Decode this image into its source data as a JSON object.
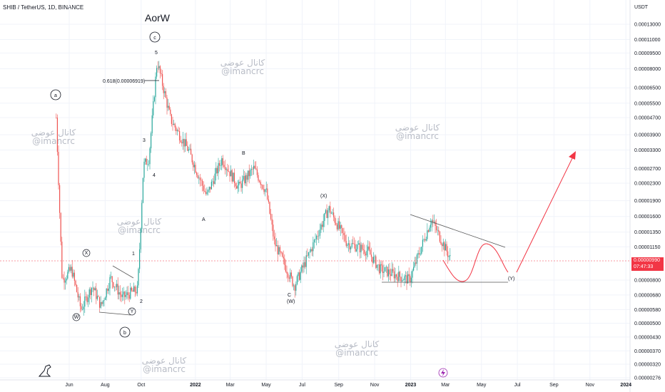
{
  "header": {
    "symbol_line": "SHIB / TetherUS, 1D, BINANCE"
  },
  "price_axis": {
    "currency": "USDT"
  },
  "current_price": {
    "value": "0.00000990",
    "countdown": "07:47:33",
    "color": "#f23645"
  },
  "colors": {
    "up": "#26a69a",
    "down": "#ef5350",
    "target_arrow": "#f23645",
    "projection_curve": "#f23645",
    "trendline": "#555555",
    "watermark": "#b8bcc6"
  },
  "chart_data": {
    "type": "candlestick",
    "y_scale": "log",
    "y_ticks": [
      "0.00013000",
      "0.00011000",
      "0.00009500",
      "0.00008000",
      "0.00006500",
      "0.00005500",
      "0.00004700",
      "0.00003900",
      "0.00003300",
      "0.00002700",
      "0.00002300",
      "0.00001900",
      "0.00001600",
      "0.00001350",
      "0.00001150",
      "0.00000800",
      "0.00000680",
      "0.00000580",
      "0.00000500",
      "0.00000430",
      "0.00000370",
      "0.00000320",
      "0.00000276"
    ],
    "x_ticks": [
      "Jun",
      "Aug",
      "Oct",
      "2022",
      "Mar",
      "May",
      "Jul",
      "Sep",
      "Nov",
      "2023",
      "Mar",
      "May",
      "Jul",
      "Sep",
      "Nov",
      "2024"
    ],
    "series_path": [
      [
        "2021-05-10",
        4.7e-05
      ],
      [
        "2021-05-20",
        8e-06
      ],
      [
        "2021-06-05",
        9e-06
      ],
      [
        "2021-06-21",
        5.8e-06
      ],
      [
        "2021-07-10",
        7.5e-06
      ],
      [
        "2021-07-25",
        6e-06
      ],
      [
        "2021-08-10",
        8.2e-06
      ],
      [
        "2021-08-30",
        6.6e-06
      ],
      [
        "2021-09-15",
        7e-06
      ],
      [
        "2021-09-25",
        7.2e-06
      ],
      [
        "2021-10-05",
        2.8e-05
      ],
      [
        "2021-10-14",
        3e-05
      ],
      [
        "2021-10-28",
        8.7e-05
      ],
      [
        "2021-11-20",
        4.6e-05
      ],
      [
        "2021-12-20",
        3.3e-05
      ],
      [
        "2022-01-20",
        2e-05
      ],
      [
        "2022-02-15",
        3e-05
      ],
      [
        "2022-03-15",
        2.2e-05
      ],
      [
        "2022-04-10",
        2.7e-05
      ],
      [
        "2022-05-01",
        2.1e-05
      ],
      [
        "2022-05-15",
        1.2e-05
      ],
      [
        "2022-06-18",
        7.5e-06
      ],
      [
        "2022-07-15",
        1.1e-05
      ],
      [
        "2022-08-15",
        1.75e-05
      ],
      [
        "2022-09-15",
        1.2e-05
      ],
      [
        "2022-10-20",
        1.1e-05
      ],
      [
        "2022-11-10",
        9e-06
      ],
      [
        "2022-12-30",
        8e-06
      ],
      [
        "2023-02-05",
        1.55e-05
      ],
      [
        "2023-03-10",
        1e-05
      ]
    ],
    "annotations": {
      "title": "AorW",
      "fib_label": "0.618(0.00006919)",
      "circled": [
        "a",
        "b",
        "c",
        "X",
        "W",
        "Y"
      ],
      "waves": [
        "1",
        "2",
        "3",
        "4",
        "5",
        "A",
        "B",
        "C",
        "(W)",
        "(X)",
        "(Y)"
      ]
    },
    "watermark_lines": [
      "کانال عوضی",
      "@imancrc"
    ]
  }
}
